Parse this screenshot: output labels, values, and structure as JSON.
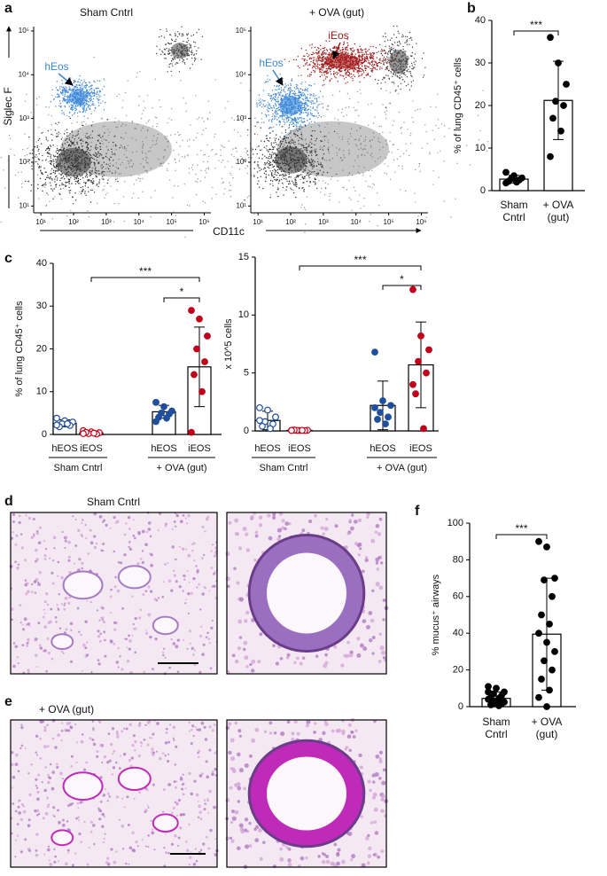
{
  "chart_data": [
    {
      "type": "flow",
      "panel_label": "a",
      "title": "Sham Cntrl",
      "ylabel": "Siglec F",
      "xlabel": "CD11c",
      "log_scale": true,
      "xlim": [
        6,
        1600000
      ],
      "ylim": [
        7,
        126000
      ],
      "xticks": [
        {
          "value": 10,
          "label": "10¹"
        },
        {
          "value": 100,
          "label": "10²"
        },
        {
          "value": 1000,
          "label": "10³"
        },
        {
          "value": 10000,
          "label": "10⁴"
        },
        {
          "value": 100000,
          "label": "10⁵"
        },
        {
          "value": 1000000,
          "label": "10⁶"
        }
      ],
      "yticks": [
        {
          "value": 10,
          "label": "10¹"
        },
        {
          "value": 100,
          "label": "10²"
        },
        {
          "value": 1000,
          "label": "10³"
        },
        {
          "value": 10000,
          "label": "10⁴"
        },
        {
          "value": 100000,
          "label": "10⁵"
        }
      ],
      "populations": [
        {
          "name": "hEos",
          "color": "#3a86d8"
        }
      ]
    },
    {
      "type": "flow",
      "title": "+ OVA (gut)",
      "log_scale": true,
      "xlim": [
        6,
        1600000
      ],
      "ylim": [
        7,
        126000
      ],
      "xticks": [
        {
          "value": 10,
          "label": "10¹"
        },
        {
          "value": 100,
          "label": "10²"
        },
        {
          "value": 1000,
          "label": "10³"
        },
        {
          "value": 10000,
          "label": "10⁴"
        },
        {
          "value": 100000,
          "label": "10⁵"
        },
        {
          "value": 1000000,
          "label": "10⁶"
        }
      ],
      "yticks": [
        {
          "value": 10,
          "label": "10¹"
        },
        {
          "value": 100,
          "label": "10²"
        },
        {
          "value": 1000,
          "label": "10³"
        },
        {
          "value": 10000,
          "label": "10⁴"
        },
        {
          "value": 100000,
          "label": "10⁵"
        }
      ],
      "populations": [
        {
          "name": "hEos",
          "color": "#3a86d8"
        },
        {
          "name": "iEos",
          "color": "#a01818"
        }
      ]
    },
    {
      "type": "bar",
      "panel_label": "b",
      "ylabel": "% of lung CD45⁺ cells",
      "categories": [
        [
          "Sham",
          "Cntrl"
        ],
        [
          "+ OVA",
          "(gut)"
        ]
      ],
      "values": [
        2.7,
        21.2
      ],
      "errors": [
        0.9,
        9.2
      ],
      "points": [
        [
          4.3,
          3.5,
          3,
          2.8,
          2.5,
          2.2,
          2,
          1.8
        ],
        [
          36,
          30,
          25,
          21,
          20,
          17,
          14,
          8
        ]
      ],
      "point_colors": [
        "#000000",
        "#000000"
      ],
      "filled": [
        true,
        true
      ],
      "ylim": [
        0,
        40
      ],
      "yticks": [
        0,
        10,
        20,
        30,
        40
      ],
      "annotations": [
        "***"
      ]
    },
    {
      "type": "bar",
      "panel_label": "c",
      "ylabel": "% of lung CD45⁺ cells",
      "categories": [
        "hEOS",
        "iEOS",
        "hEOS",
        "iEOS"
      ],
      "groups": [
        "Sham Cntrl",
        "+ OVA (gut)"
      ],
      "values": [
        2.6,
        0.4,
        5.3,
        15.8
      ],
      "errors": [
        0.8,
        0.3,
        1.5,
        9.3
      ],
      "points": [
        [
          3.8,
          3.2,
          2.9,
          2.5,
          2.1,
          1.8,
          2.5,
          2.2
        ],
        [
          0.9,
          0.6,
          0.4,
          0.2,
          0.1,
          0.5,
          0.3,
          0.2
        ],
        [
          7.5,
          6.5,
          5.5,
          5,
          4.8,
          4,
          3.8,
          3
        ],
        [
          29,
          27,
          23,
          20,
          17,
          14,
          10,
          0.5
        ]
      ],
      "point_colors": [
        "#1f4e9c",
        "#c0001a",
        "#1f4e9c",
        "#c0001a"
      ],
      "filled": [
        false,
        false,
        true,
        true
      ],
      "ylim": [
        0,
        40
      ],
      "yticks": [
        0,
        10,
        20,
        30,
        40
      ],
      "annotations": [
        "***",
        "*"
      ]
    },
    {
      "type": "bar",
      "ylabel": "x 10^5 cells",
      "categories": [
        "hEOS",
        "iEOS",
        "hEOS",
        "iEOS"
      ],
      "groups": [
        "Sham Cntrl",
        "+ OVA (gut)"
      ],
      "values": [
        0.9,
        0.05,
        2.2,
        5.7
      ],
      "errors": [
        0.8,
        0.03,
        2.1,
        3.7
      ],
      "points": [
        [
          2,
          1.8,
          1.2,
          0.8,
          0.6,
          0.4,
          0.2,
          0.9
        ],
        [
          0.05,
          0.04,
          0.06,
          0.05,
          0.03,
          0.07,
          0.05,
          0.04
        ],
        [
          6.8,
          2.6,
          2.2,
          1.6,
          1.2,
          1,
          0.6,
          2
        ],
        [
          12.2,
          8.2,
          7,
          6,
          5,
          3.2,
          0.2,
          4
        ]
      ],
      "point_colors": [
        "#1f4e9c",
        "#c0001a",
        "#1f4e9c",
        "#c0001a"
      ],
      "filled": [
        false,
        false,
        true,
        true
      ],
      "ylim": [
        0,
        15
      ],
      "yticks": [
        0,
        5,
        10,
        15
      ],
      "annotations": [
        "***",
        "*"
      ]
    },
    {
      "type": "bar",
      "panel_label": "f",
      "ylabel": "% mucus⁺ airways",
      "categories": [
        [
          "Sham",
          "Cntrl"
        ],
        [
          "+ OVA",
          "(gut)"
        ]
      ],
      "values": [
        4.5,
        39.5
      ],
      "errors": [
        3.5,
        30.5
      ],
      "points": [
        [
          11,
          10,
          8,
          7,
          6,
          5,
          4.5,
          4,
          3,
          2.5,
          2,
          1.5,
          1,
          0.5,
          8
        ],
        [
          90,
          87,
          70,
          69,
          60,
          50,
          45,
          40,
          35,
          30,
          25,
          20,
          15,
          9,
          5,
          0
        ]
      ],
      "point_colors": [
        "#000000",
        "#000000"
      ],
      "filled": [
        true,
        true
      ],
      "ylim": [
        0,
        100
      ],
      "yticks": [
        0,
        20,
        40,
        60,
        80,
        100
      ],
      "annotations": [
        "***"
      ]
    }
  ],
  "images": [
    {
      "panel_label": "d",
      "title": "Sham Cntrl"
    },
    {
      "panel_label": "e",
      "title": "+ OVA (gut)"
    }
  ]
}
